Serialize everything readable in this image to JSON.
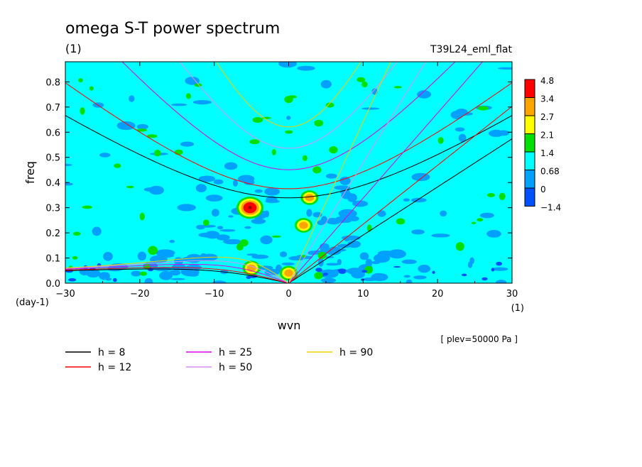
{
  "title": "omega S-T power spectrum",
  "title_units": "(1)",
  "experiment": "T39L24_eml_flat",
  "level_note": "[ plev=50000 Pa ]",
  "chart_data": {
    "type": "heatmap",
    "title": "omega S-T power spectrum",
    "xlabel": "wvn",
    "ylabel": "freq",
    "x_units": "(1)",
    "y_units": "(day-1)",
    "xlim": [
      -30,
      30
    ],
    "ylim": [
      0,
      0.88
    ],
    "xticks": [
      -30,
      -20,
      -10,
      0,
      10,
      20,
      30
    ],
    "yticks": [
      0.0,
      0.1,
      0.2,
      0.3,
      0.4,
      0.5,
      0.6,
      0.7,
      0.8
    ],
    "background_level": 0.68,
    "colorbar": {
      "labels": [
        "4.8",
        "3.4",
        "2.7",
        "2.1",
        "1.4",
        "0.68",
        "0",
        "-1.4"
      ],
      "colors": [
        "#ff0000",
        "#ffa500",
        "#ffff00",
        "#00e000",
        "#00ffff",
        "#00a0ff",
        "#0050ff"
      ]
    },
    "features": [
      {
        "x": -5.2,
        "y": 0.3,
        "level": 4.8
      },
      {
        "x": 2.8,
        "y": 0.34,
        "level": 2.7
      },
      {
        "x": 3.8,
        "y": 0.45,
        "level": 1.4
      },
      {
        "x": 0.0,
        "y": 0.73,
        "level": 1.4
      },
      {
        "x": 2.0,
        "y": 0.23,
        "level": 2.7
      },
      {
        "x": -5.0,
        "y": 0.06,
        "level": 2.7
      },
      {
        "x": 0.0,
        "y": 0.04,
        "level": 2.7
      },
      {
        "x": 4.5,
        "y": 0.11,
        "level": 1.4
      },
      {
        "x": 4.0,
        "y": 0.03,
        "level": 1.4
      },
      {
        "x": -6.0,
        "y": 0.16,
        "level": 1.4
      },
      {
        "x": 6.0,
        "y": 0.53,
        "level": 1.4
      }
    ],
    "dispersion_curves": [
      {
        "name": "h =  8",
        "color": "#000000",
        "h": 8
      },
      {
        "name": "h = 12",
        "color": "#ff0000",
        "h": 12
      },
      {
        "name": "h = 25",
        "color": "#e000e0",
        "h": 25
      },
      {
        "name": "h = 50",
        "color": "#d890f0",
        "h": 50
      },
      {
        "name": "h = 90",
        "color": "#f0d000",
        "h": 90
      }
    ]
  }
}
